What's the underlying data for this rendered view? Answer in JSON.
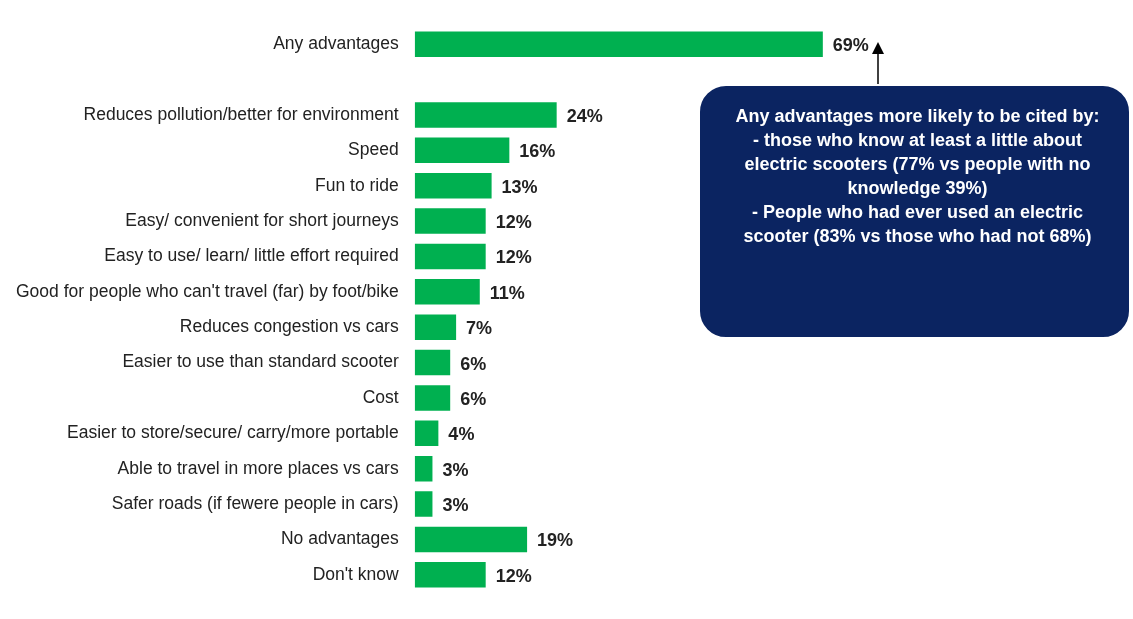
{
  "chart_data": {
    "type": "bar",
    "orientation": "horizontal",
    "categories": [
      "Any advantages",
      null,
      "Reduces pollution/better for environment",
      "Speed",
      "Fun to ride",
      "Easy/ convenient for short journeys",
      "Easy to use/ learn/ little effort required",
      "Good for people who can't travel (far) by foot/bike",
      "Reduces congestion vs cars",
      "Easier to use than standard scooter",
      "Cost",
      "Easier to store/secure/ carry/more portable",
      "Able to travel in more places vs cars",
      "Safer roads (if fewere people in cars)",
      "No advantages",
      "Don't know"
    ],
    "values": [
      69,
      null,
      24,
      16,
      13,
      12,
      12,
      11,
      7,
      6,
      6,
      4,
      3,
      3,
      19,
      12
    ],
    "value_labels": [
      "69%",
      null,
      "24%",
      "16%",
      "13%",
      "12%",
      "12%",
      "11%",
      "7%",
      "6%",
      "6%",
      "4%",
      "3%",
      "3%",
      "19%",
      "12%"
    ],
    "color": "#00b050",
    "tick_labels": "y",
    "grid": false,
    "legend": false,
    "annotations": [
      "Any advantages more likely to be cited by:\n-   those who know at least a little about electric scooters (77%  vs people with no knowledge 39%)\n-   People who had ever used an electric scooter (83%  vs those who had not 68%)"
    ]
  }
}
